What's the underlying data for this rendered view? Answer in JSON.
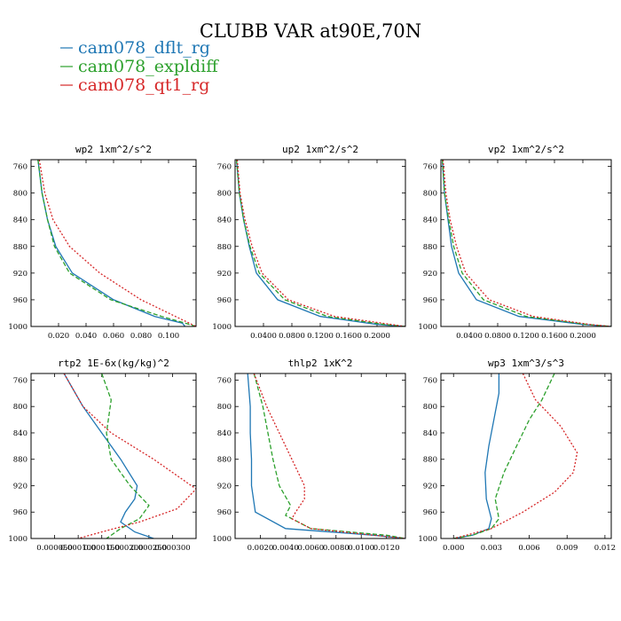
{
  "figure": {
    "title": "CLUBB VAR at90E,70N",
    "colors": {
      "cam078_dflt_rg": "#1f77b4",
      "cam078_expldiff": "#2ca02c",
      "cam078_qt1_rg": "#d62728"
    },
    "legend": [
      "cam078_dflt_rg",
      "cam078_expldiff",
      "cam078_qt1_rg"
    ],
    "legend_placement": "top-left"
  },
  "chart_data": [
    {
      "type": "line",
      "title": "wp2   1xm^2/s^2",
      "y_ticks": [
        "760",
        "800",
        "840",
        "880",
        "920",
        "960",
        "1000"
      ],
      "x_ticks": [
        "0.020",
        "0.040",
        "0.060",
        "0.080",
        "0.100"
      ],
      "xlim": [
        0.0,
        0.12
      ],
      "ylim": [
        750,
        1000
      ],
      "y_inverted": true,
      "series": [
        {
          "name": "cam078_dflt_rg",
          "style": "solid",
          "points": [
            [
              0.005,
              750
            ],
            [
              0.008,
              800
            ],
            [
              0.012,
              840
            ],
            [
              0.018,
              880
            ],
            [
              0.03,
              920
            ],
            [
              0.06,
              960
            ],
            [
              0.09,
              985
            ],
            [
              0.11,
              995
            ],
            [
              0.112,
              1000
            ]
          ]
        },
        {
          "name": "cam078_expldiff",
          "style": "dashed",
          "points": [
            [
              0.005,
              750
            ],
            [
              0.008,
              800
            ],
            [
              0.012,
              840
            ],
            [
              0.017,
              880
            ],
            [
              0.028,
              920
            ],
            [
              0.058,
              960
            ],
            [
              0.095,
              985
            ],
            [
              0.112,
              995
            ],
            [
              0.12,
              1000
            ]
          ]
        },
        {
          "name": "cam078_qt1_rg",
          "style": "dotted",
          "points": [
            [
              0.006,
              750
            ],
            [
              0.01,
              800
            ],
            [
              0.016,
              840
            ],
            [
              0.028,
              880
            ],
            [
              0.05,
              920
            ],
            [
              0.08,
              960
            ],
            [
              0.105,
              985
            ],
            [
              0.115,
              995
            ],
            [
              0.12,
              1000
            ]
          ]
        }
      ]
    },
    {
      "type": "line",
      "title": "up2   1xm^2/s^2",
      "y_ticks": [
        "760",
        "800",
        "840",
        "880",
        "920",
        "960",
        "1000"
      ],
      "x_ticks": [
        "0.0400",
        "0.0800",
        "0.1200",
        "0.1600",
        "0.2000"
      ],
      "xlim": [
        0.0,
        0.24
      ],
      "ylim": [
        750,
        1000
      ],
      "y_inverted": true,
      "series": [
        {
          "name": "cam078_dflt_rg",
          "style": "solid",
          "points": [
            [
              0.002,
              750
            ],
            [
              0.006,
              800
            ],
            [
              0.012,
              840
            ],
            [
              0.02,
              880
            ],
            [
              0.03,
              920
            ],
            [
              0.06,
              960
            ],
            [
              0.12,
              985
            ],
            [
              0.2,
              997
            ],
            [
              0.24,
              1000
            ]
          ]
        },
        {
          "name": "cam078_expldiff",
          "style": "dashed",
          "points": [
            [
              0.002,
              750
            ],
            [
              0.006,
              800
            ],
            [
              0.012,
              840
            ],
            [
              0.021,
              880
            ],
            [
              0.034,
              920
            ],
            [
              0.07,
              960
            ],
            [
              0.13,
              985
            ],
            [
              0.21,
              997
            ],
            [
              0.24,
              1000
            ]
          ]
        },
        {
          "name": "cam078_qt1_rg",
          "style": "dotted",
          "points": [
            [
              0.003,
              750
            ],
            [
              0.007,
              800
            ],
            [
              0.014,
              840
            ],
            [
              0.024,
              880
            ],
            [
              0.038,
              920
            ],
            [
              0.075,
              960
            ],
            [
              0.14,
              985
            ],
            [
              0.22,
              997
            ],
            [
              0.24,
              1000
            ]
          ]
        }
      ]
    },
    {
      "type": "line",
      "title": "vp2   1xm^2/s^2",
      "y_ticks": [
        "760",
        "800",
        "840",
        "880",
        "920",
        "960",
        "1000"
      ],
      "x_ticks": [
        "0.0400",
        "0.0800",
        "0.1200",
        "0.1600",
        "0.2000"
      ],
      "xlim": [
        0.0,
        0.24
      ],
      "ylim": [
        750,
        1000
      ],
      "y_inverted": true,
      "series": [
        {
          "name": "cam078_dflt_rg",
          "style": "solid",
          "points": [
            [
              0.002,
              750
            ],
            [
              0.005,
              800
            ],
            [
              0.01,
              840
            ],
            [
              0.015,
              880
            ],
            [
              0.025,
              920
            ],
            [
              0.05,
              960
            ],
            [
              0.11,
              985
            ],
            [
              0.2,
              997
            ],
            [
              0.24,
              1000
            ]
          ]
        },
        {
          "name": "cam078_expldiff",
          "style": "dashed",
          "points": [
            [
              0.002,
              750
            ],
            [
              0.005,
              800
            ],
            [
              0.011,
              840
            ],
            [
              0.018,
              880
            ],
            [
              0.03,
              920
            ],
            [
              0.06,
              960
            ],
            [
              0.12,
              985
            ],
            [
              0.205,
              997
            ],
            [
              0.24,
              1000
            ]
          ]
        },
        {
          "name": "cam078_qt1_rg",
          "style": "dotted",
          "points": [
            [
              0.003,
              750
            ],
            [
              0.007,
              800
            ],
            [
              0.013,
              840
            ],
            [
              0.022,
              880
            ],
            [
              0.035,
              920
            ],
            [
              0.068,
              960
            ],
            [
              0.13,
              985
            ],
            [
              0.21,
              997
            ],
            [
              0.24,
              1000
            ]
          ]
        }
      ]
    },
    {
      "type": "line",
      "title": "rtp2   1E-6x(kg/kg)^2",
      "y_ticks": [
        "760",
        "800",
        "840",
        "880",
        "920",
        "960",
        "1000"
      ],
      "x_ticks": [
        "0.000050",
        "0.000100",
        "0.000150",
        "0.000200",
        "0.000250",
        "0.000300"
      ],
      "xlim": [
        0.0,
        0.00035
      ],
      "ylim": [
        750,
        1000
      ],
      "y_inverted": true,
      "series": [
        {
          "name": "cam078_dflt_rg",
          "style": "solid",
          "points": [
            [
              7e-05,
              750
            ],
            [
              0.00011,
              800
            ],
            [
              0.00015,
              840
            ],
            [
              0.00019,
              880
            ],
            [
              0.000225,
              920
            ],
            [
              0.00022,
              940
            ],
            [
              0.0002,
              960
            ],
            [
              0.00019,
              975
            ],
            [
              0.00022,
              990
            ],
            [
              0.00026,
              1000
            ]
          ]
        },
        {
          "name": "cam078_expldiff",
          "style": "dashed",
          "points": [
            [
              0.00015,
              750
            ],
            [
              0.00017,
              790
            ],
            [
              0.00016,
              840
            ],
            [
              0.00017,
              880
            ],
            [
              0.00021,
              920
            ],
            [
              0.00025,
              950
            ],
            [
              0.00023,
              970
            ],
            [
              0.00019,
              985
            ],
            [
              0.00016,
              1000
            ]
          ]
        },
        {
          "name": "cam078_qt1_rg",
          "style": "dotted",
          "points": [
            [
              7e-05,
              750
            ],
            [
              0.00011,
              800
            ],
            [
              0.00017,
              840
            ],
            [
              0.00026,
              880
            ],
            [
              0.00032,
              910
            ],
            [
              0.00035,
              925
            ],
            [
              0.00031,
              955
            ],
            [
              0.00023,
              975
            ],
            [
              0.00015,
              990
            ],
            [
              0.0001,
              1000
            ]
          ]
        }
      ]
    },
    {
      "type": "line",
      "title": "thlp2   1xK^2",
      "y_ticks": [
        "760",
        "800",
        "840",
        "880",
        "920",
        "960",
        "1000"
      ],
      "x_ticks": [
        "0.0020",
        "0.0040",
        "0.0060",
        "0.0080",
        "0.0100",
        "0.0120"
      ],
      "xlim": [
        0.0,
        0.0135
      ],
      "ylim": [
        750,
        1000
      ],
      "y_inverted": true,
      "series": [
        {
          "name": "cam078_dflt_rg",
          "style": "solid",
          "points": [
            [
              0.001,
              750
            ],
            [
              0.0012,
              800
            ],
            [
              0.0012,
              840
            ],
            [
              0.0013,
              880
            ],
            [
              0.0013,
              920
            ],
            [
              0.0016,
              960
            ],
            [
              0.004,
              985
            ],
            [
              0.011,
              995
            ],
            [
              0.0135,
              1000
            ]
          ]
        },
        {
          "name": "cam078_expldiff",
          "style": "dashed",
          "points": [
            [
              0.0015,
              750
            ],
            [
              0.0022,
              800
            ],
            [
              0.0026,
              840
            ],
            [
              0.003,
              880
            ],
            [
              0.0035,
              920
            ],
            [
              0.0044,
              950
            ],
            [
              0.004,
              965
            ],
            [
              0.006,
              985
            ],
            [
              0.012,
              995
            ],
            [
              0.0135,
              1000
            ]
          ]
        },
        {
          "name": "cam078_qt1_rg",
          "style": "dotted",
          "points": [
            [
              0.0015,
              750
            ],
            [
              0.0025,
              800
            ],
            [
              0.0035,
              840
            ],
            [
              0.0045,
              880
            ],
            [
              0.0055,
              920
            ],
            [
              0.0055,
              940
            ],
            [
              0.0048,
              960
            ],
            [
              0.0045,
              970
            ],
            [
              0.006,
              985
            ],
            [
              0.011,
              995
            ],
            [
              0.0135,
              1000
            ]
          ]
        }
      ]
    },
    {
      "type": "line",
      "title": "wp3   1xm^3/s^3",
      "y_ticks": [
        "760",
        "800",
        "840",
        "880",
        "920",
        "960",
        "1000"
      ],
      "x_ticks": [
        "0.000",
        "0.003",
        "0.006",
        "0.009",
        "0.012"
      ],
      "xlim": [
        -0.001,
        0.0125
      ],
      "ylim": [
        750,
        1000
      ],
      "y_inverted": true,
      "series": [
        {
          "name": "cam078_dflt_rg",
          "style": "solid",
          "points": [
            [
              0.0036,
              750
            ],
            [
              0.0036,
              780
            ],
            [
              0.0032,
              820
            ],
            [
              0.0028,
              860
            ],
            [
              0.0025,
              900
            ],
            [
              0.0026,
              940
            ],
            [
              0.003,
              970
            ],
            [
              0.0028,
              985
            ],
            [
              0.0015,
              995
            ],
            [
              0.0,
              1000
            ]
          ]
        },
        {
          "name": "cam078_expldiff",
          "style": "dashed",
          "points": [
            [
              0.008,
              750
            ],
            [
              0.007,
              790
            ],
            [
              0.006,
              820
            ],
            [
              0.005,
              860
            ],
            [
              0.004,
              900
            ],
            [
              0.0033,
              940
            ],
            [
              0.0036,
              970
            ],
            [
              0.003,
              985
            ],
            [
              0.0015,
              995
            ],
            [
              0.0,
              1000
            ]
          ]
        },
        {
          "name": "cam078_qt1_rg",
          "style": "dotted",
          "points": [
            [
              0.0055,
              750
            ],
            [
              0.0065,
              790
            ],
            [
              0.0085,
              830
            ],
            [
              0.0098,
              870
            ],
            [
              0.0095,
              900
            ],
            [
              0.008,
              930
            ],
            [
              0.0055,
              960
            ],
            [
              0.003,
              985
            ],
            [
              0.001,
              995
            ],
            [
              0.0,
              1000
            ]
          ]
        }
      ]
    }
  ]
}
